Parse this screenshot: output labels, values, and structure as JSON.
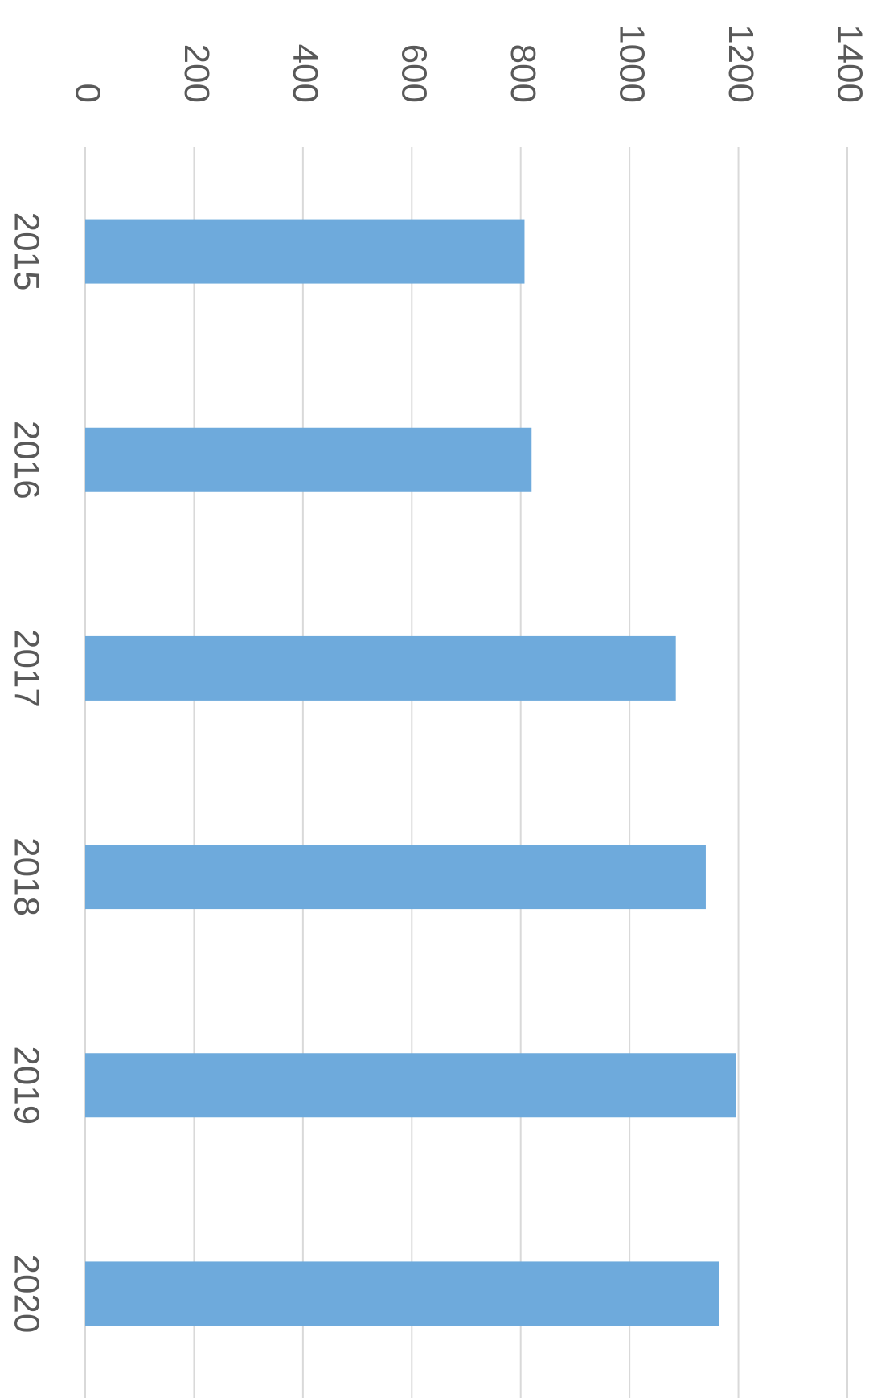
{
  "chart_data": {
    "type": "bar",
    "orientation": "horizontal",
    "categories": [
      "2015",
      "2016",
      "2017",
      "2018",
      "2019",
      "2020"
    ],
    "values": [
      807,
      820,
      1085,
      1140,
      1196,
      1164
    ],
    "color": "#6eaadc",
    "ylim": [
      0,
      1400
    ],
    "yticks": [
      0,
      200,
      400,
      600,
      800,
      1000,
      1200,
      1400
    ],
    "grid": true
  }
}
